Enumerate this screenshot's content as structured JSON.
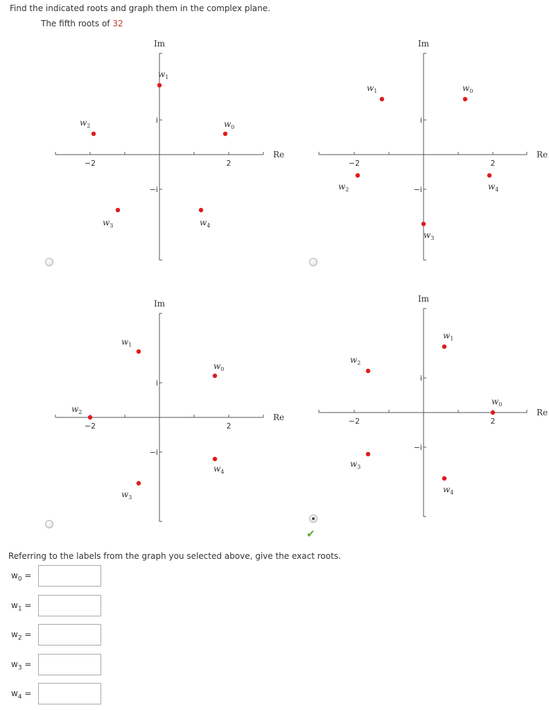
{
  "question": {
    "prompt": "Find the indicated roots and graph them in the complex plane.",
    "subtitle_prefix": "The fifth roots of",
    "subtitle_value": "32"
  },
  "graphs": [
    {
      "im_label": "Im",
      "re_label": "Re",
      "tick_neg2": "−2",
      "tick_pos2": "2",
      "tick_i": "i",
      "tick_negi": "−i",
      "selected": false
    },
    {
      "im_label": "Im",
      "re_label": "Re",
      "tick_neg2": "−2",
      "tick_pos2": "2",
      "tick_i": "i",
      "tick_negi": "−i",
      "selected": false
    },
    {
      "im_label": "Im",
      "re_label": "Re",
      "tick_neg2": "−2",
      "tick_pos2": "2",
      "tick_i": "i",
      "tick_negi": "−i",
      "selected": false
    },
    {
      "im_label": "Im",
      "re_label": "Re",
      "tick_neg2": "−2",
      "tick_pos2": "2",
      "tick_i": "i",
      "tick_negi": "−i",
      "selected": true
    }
  ],
  "chart_data": [
    {
      "type": "scatter",
      "title": "",
      "xlabel": "Re",
      "ylabel": "Im",
      "points": [
        {
          "name": "w0",
          "x": 1.9,
          "y": 0.6
        },
        {
          "name": "w1",
          "x": 0.0,
          "y": 2.0
        },
        {
          "name": "w2",
          "x": -1.9,
          "y": 0.6
        },
        {
          "name": "w3",
          "x": -1.2,
          "y": -1.6
        },
        {
          "name": "w4",
          "x": 1.2,
          "y": -1.6
        }
      ]
    },
    {
      "type": "scatter",
      "title": "",
      "xlabel": "Re",
      "ylabel": "Im",
      "points": [
        {
          "name": "w0",
          "x": 1.2,
          "y": 1.6
        },
        {
          "name": "w1",
          "x": -1.2,
          "y": 1.6
        },
        {
          "name": "w2",
          "x": -1.9,
          "y": -0.6
        },
        {
          "name": "w3",
          "x": 0.0,
          "y": -2.0
        },
        {
          "name": "w4",
          "x": 1.9,
          "y": -0.6
        }
      ]
    },
    {
      "type": "scatter",
      "title": "",
      "xlabel": "Re",
      "ylabel": "Im",
      "points": [
        {
          "name": "w0",
          "x": 1.6,
          "y": 1.2
        },
        {
          "name": "w1",
          "x": -0.6,
          "y": 1.9
        },
        {
          "name": "w2",
          "x": -2.0,
          "y": 0.0
        },
        {
          "name": "w3",
          "x": -0.6,
          "y": -1.9
        },
        {
          "name": "w4",
          "x": 1.6,
          "y": -1.2
        }
      ]
    },
    {
      "type": "scatter",
      "title": "",
      "xlabel": "Re",
      "ylabel": "Im",
      "points": [
        {
          "name": "w0",
          "x": 2.0,
          "y": 0.0
        },
        {
          "name": "w1",
          "x": 0.6,
          "y": 1.9
        },
        {
          "name": "w2",
          "x": -1.6,
          "y": 1.2
        },
        {
          "name": "w3",
          "x": -1.6,
          "y": -1.2
        },
        {
          "name": "w4",
          "x": 0.6,
          "y": -1.9
        }
      ]
    }
  ],
  "feedback": {
    "correct_mark": "✔"
  },
  "answers": {
    "instruction": "Referring to the labels from the graph you selected above, give the exact roots.",
    "fields": [
      {
        "var": "w",
        "sub": "0",
        "eq": "=",
        "value": ""
      },
      {
        "var": "w",
        "sub": "1",
        "eq": "=",
        "value": ""
      },
      {
        "var": "w",
        "sub": "2",
        "eq": "=",
        "value": ""
      },
      {
        "var": "w",
        "sub": "3",
        "eq": "=",
        "value": ""
      },
      {
        "var": "w",
        "sub": "4",
        "eq": "=",
        "value": ""
      }
    ]
  },
  "colors": {
    "point": "#e01b1b",
    "axis": "#555555",
    "accent_value": "#c0392b",
    "check": "#5aaa2a"
  }
}
